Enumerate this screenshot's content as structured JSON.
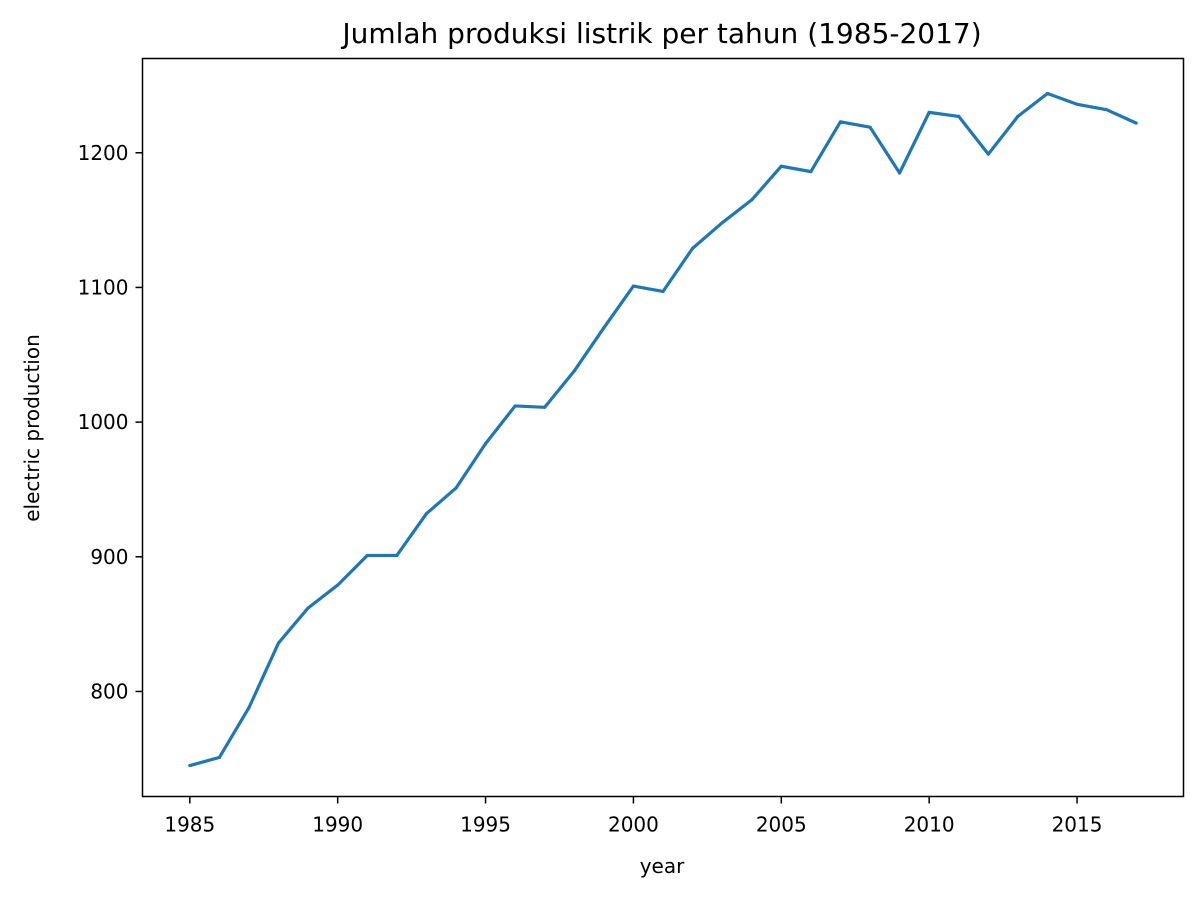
{
  "chart_data": {
    "type": "line",
    "title": "Jumlah produksi listrik per tahun (1985-2017)",
    "xlabel": "year",
    "ylabel": "electric production",
    "xlim": [
      1983.4,
      2018.6
    ],
    "ylim": [
      722,
      1270
    ],
    "grid": false,
    "legend": "none",
    "line_color": "#1f77b4",
    "x_ticks": [
      1985,
      1990,
      1995,
      2000,
      2005,
      2010,
      2015
    ],
    "x_tick_labels": [
      "1985",
      "1990",
      "1995",
      "2000",
      "2005",
      "2010",
      "2015"
    ],
    "y_ticks": [
      800,
      900,
      1000,
      1100,
      1200
    ],
    "y_tick_labels": [
      "800",
      "900",
      "1000",
      "1100",
      "1200"
    ],
    "series": [
      {
        "x": [
          1985,
          1986,
          1987,
          1988,
          1989,
          1990,
          1991,
          1992,
          1993,
          1994,
          1995,
          1996,
          1997,
          1998,
          1999,
          2000,
          2001,
          2002,
          2003,
          2004,
          2005,
          2006,
          2007,
          2008,
          2009,
          2010,
          2011,
          2012,
          2013,
          2014,
          2015,
          2016,
          2017
        ],
        "values": [
          745,
          751,
          788,
          836,
          862,
          879,
          901,
          901,
          932,
          951,
          984,
          1012,
          1011,
          1038,
          1070,
          1101,
          1097,
          1129,
          1148,
          1165,
          1190,
          1186,
          1223,
          1219,
          1185,
          1230,
          1227,
          1199,
          1227,
          1244,
          1236,
          1232,
          1222
        ]
      }
    ]
  }
}
